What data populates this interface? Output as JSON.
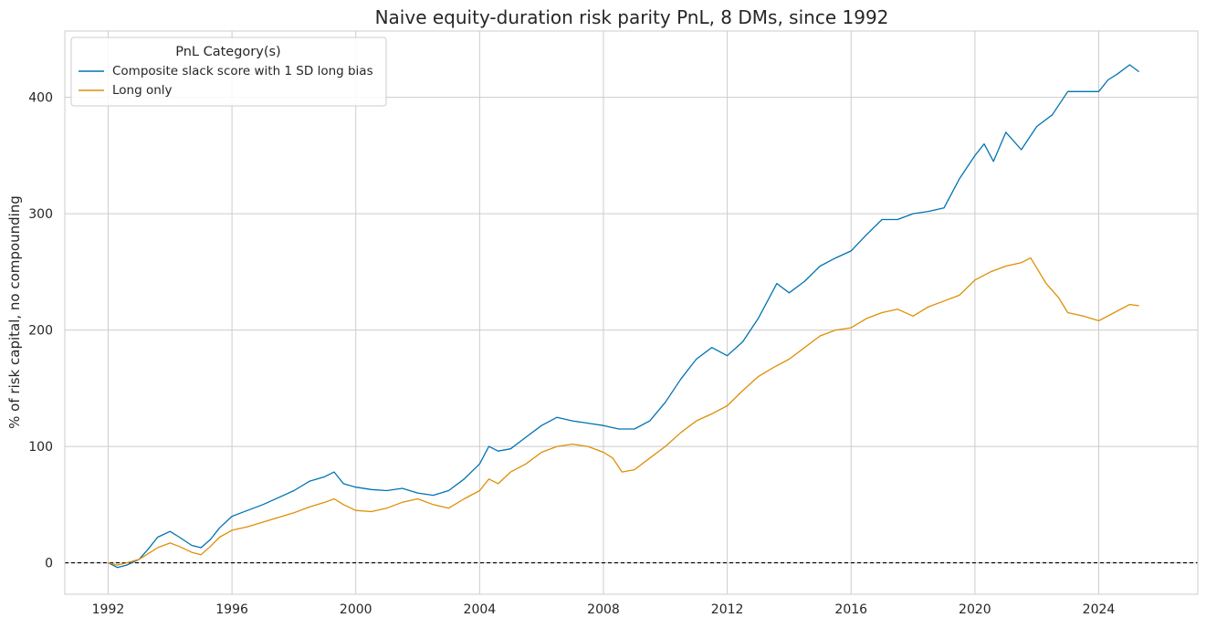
{
  "chart_data": {
    "type": "line",
    "title": "Naive equity-duration risk parity PnL, 8 DMs, since 1992",
    "xlabel": "",
    "ylabel": "% of risk capital, no compounding",
    "xlim": [
      1990.6,
      2027.2
    ],
    "ylim": [
      -27,
      457
    ],
    "x_ticks": [
      1992,
      1996,
      2000,
      2004,
      2008,
      2012,
      2016,
      2020,
      2024
    ],
    "x_tick_labels": [
      "1992",
      "1996",
      "2000",
      "2004",
      "2008",
      "2012",
      "2016",
      "2020",
      "2024"
    ],
    "y_ticks": [
      0,
      100,
      200,
      300,
      400
    ],
    "y_tick_labels": [
      "0",
      "100",
      "200",
      "300",
      "400"
    ],
    "grid": true,
    "reference_line": {
      "y": 0,
      "style": "dashed",
      "color": "#000000"
    },
    "legend": {
      "title": "PnL Category(s)",
      "placement": "top-left"
    },
    "series": [
      {
        "name": "Composite slack score with 1 SD long bias",
        "color": "#0173b2",
        "x": [
          1992.0,
          1992.3,
          1992.6,
          1993.0,
          1993.3,
          1993.6,
          1994.0,
          1994.3,
          1994.7,
          1995.0,
          1995.3,
          1995.6,
          1996.0,
          1996.5,
          1997.0,
          1997.5,
          1998.0,
          1998.5,
          1999.0,
          1999.3,
          1999.6,
          2000.0,
          2000.5,
          2001.0,
          2001.5,
          2002.0,
          2002.5,
          2003.0,
          2003.5,
          2004.0,
          2004.3,
          2004.6,
          2005.0,
          2005.5,
          2006.0,
          2006.5,
          2007.0,
          2007.5,
          2008.0,
          2008.5,
          2009.0,
          2009.5,
          2010.0,
          2010.5,
          2011.0,
          2011.5,
          2012.0,
          2012.5,
          2013.0,
          2013.3,
          2013.6,
          2014.0,
          2014.5,
          2015.0,
          2015.5,
          2016.0,
          2016.5,
          2017.0,
          2017.5,
          2018.0,
          2018.5,
          2019.0,
          2019.5,
          2020.0,
          2020.3,
          2020.6,
          2021.0,
          2021.5,
          2022.0,
          2022.5,
          2023.0,
          2023.5,
          2024.0,
          2024.3,
          2024.6,
          2025.0,
          2025.3
        ],
        "y": [
          0,
          -4,
          -2,
          3,
          12,
          22,
          27,
          22,
          15,
          13,
          20,
          30,
          40,
          45,
          50,
          56,
          62,
          70,
          74,
          78,
          68,
          65,
          63,
          62,
          64,
          60,
          58,
          62,
          72,
          85,
          100,
          96,
          98,
          108,
          118,
          125,
          122,
          120,
          118,
          115,
          115,
          122,
          138,
          158,
          175,
          185,
          178,
          190,
          210,
          225,
          240,
          232,
          242,
          255,
          262,
          268,
          282,
          295,
          295,
          300,
          302,
          305,
          330,
          350,
          360,
          345,
          370,
          355,
          375,
          385,
          405,
          405,
          405,
          415,
          420,
          428,
          422
        ]
      },
      {
        "name": "Long only",
        "color": "#de8f05",
        "x": [
          1992.0,
          1992.3,
          1992.6,
          1993.0,
          1993.3,
          1993.6,
          1994.0,
          1994.3,
          1994.7,
          1995.0,
          1995.3,
          1995.6,
          1996.0,
          1996.5,
          1997.0,
          1997.5,
          1998.0,
          1998.5,
          1999.0,
          1999.3,
          1999.6,
          2000.0,
          2000.5,
          2001.0,
          2001.5,
          2002.0,
          2002.5,
          2003.0,
          2003.5,
          2004.0,
          2004.3,
          2004.6,
          2005.0,
          2005.5,
          2006.0,
          2006.5,
          2007.0,
          2007.5,
          2008.0,
          2008.3,
          2008.6,
          2009.0,
          2009.5,
          2010.0,
          2010.5,
          2011.0,
          2011.5,
          2012.0,
          2012.5,
          2013.0,
          2013.5,
          2014.0,
          2014.5,
          2015.0,
          2015.5,
          2016.0,
          2016.5,
          2017.0,
          2017.5,
          2018.0,
          2018.5,
          2019.0,
          2019.5,
          2020.0,
          2020.5,
          2021.0,
          2021.5,
          2021.8,
          2022.3,
          2022.7,
          2023.0,
          2023.5,
          2024.0,
          2024.5,
          2025.0,
          2025.3
        ],
        "y": [
          0,
          -2,
          0,
          3,
          8,
          13,
          17,
          14,
          9,
          7,
          14,
          22,
          28,
          31,
          35,
          39,
          43,
          48,
          52,
          55,
          50,
          45,
          44,
          47,
          52,
          55,
          50,
          47,
          55,
          62,
          72,
          68,
          78,
          85,
          95,
          100,
          102,
          100,
          95,
          90,
          78,
          80,
          90,
          100,
          112,
          122,
          128,
          135,
          148,
          160,
          168,
          175,
          185,
          195,
          200,
          202,
          210,
          215,
          218,
          212,
          220,
          225,
          230,
          243,
          250,
          255,
          258,
          262,
          240,
          228,
          215,
          212,
          208,
          215,
          222,
          221
        ]
      }
    ]
  }
}
